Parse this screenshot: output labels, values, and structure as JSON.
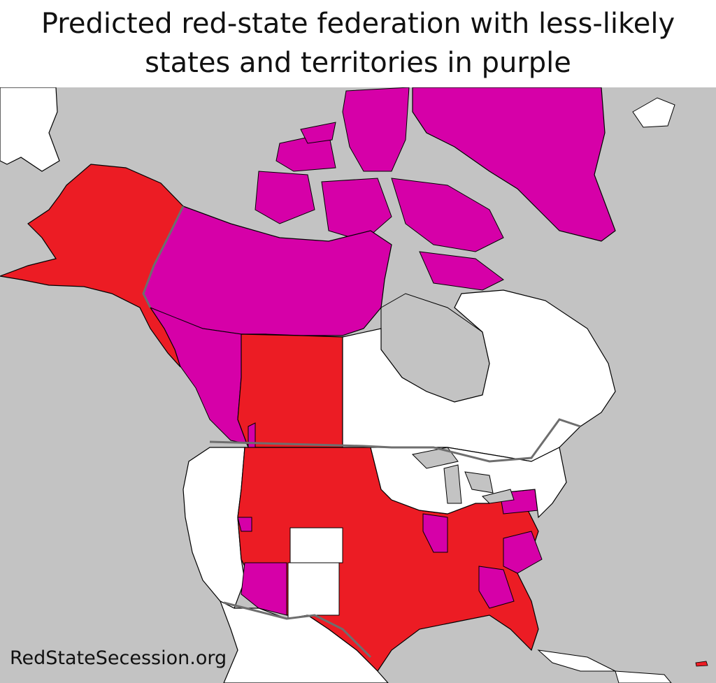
{
  "title": {
    "line1": "Predicted red-state federation with less-likely",
    "line2": "states and territories in purple"
  },
  "credit": "RedStateSecession.org",
  "colors": {
    "ocean": "#c3c3c3",
    "red_state": "#ec1c24",
    "purple": "#d600a8",
    "other_land": "#ffffff",
    "border": "#6e6e6e",
    "coast": "#000000"
  }
}
